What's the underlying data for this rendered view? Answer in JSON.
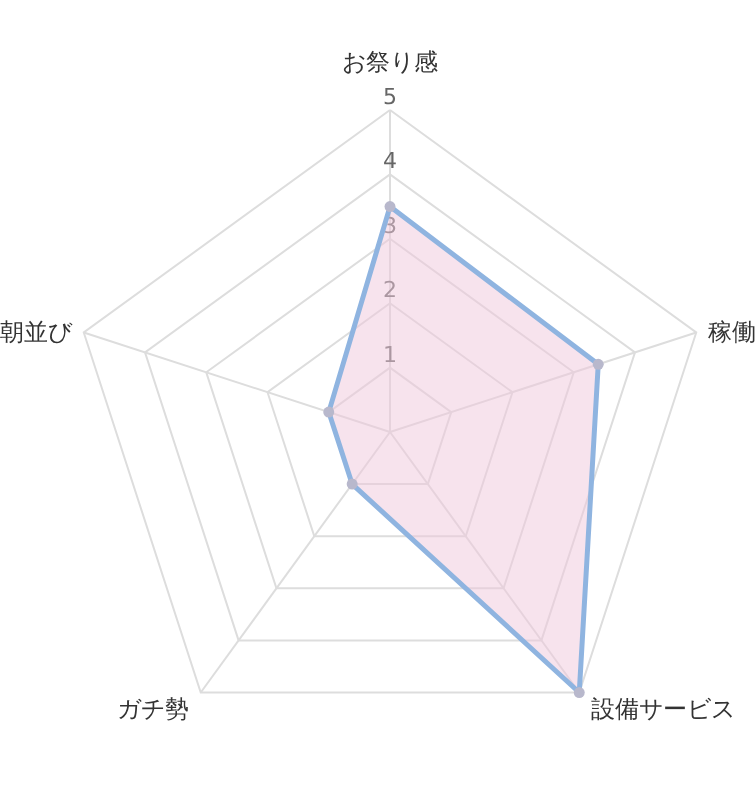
{
  "chart_data": {
    "type": "radar",
    "categories": [
      "お祭り感",
      "稼働",
      "設備サービス",
      "ガチ勢",
      "朝並び"
    ],
    "series": [
      {
        "color": "#8fb4e0",
        "values": [
          3.5,
          3.4,
          5,
          1,
          1
        ]
      }
    ],
    "ylim": [
      0,
      5
    ],
    "yticks": [
      1,
      2,
      3,
      4,
      5
    ],
    "grid": true,
    "marker": "circle"
  }
}
